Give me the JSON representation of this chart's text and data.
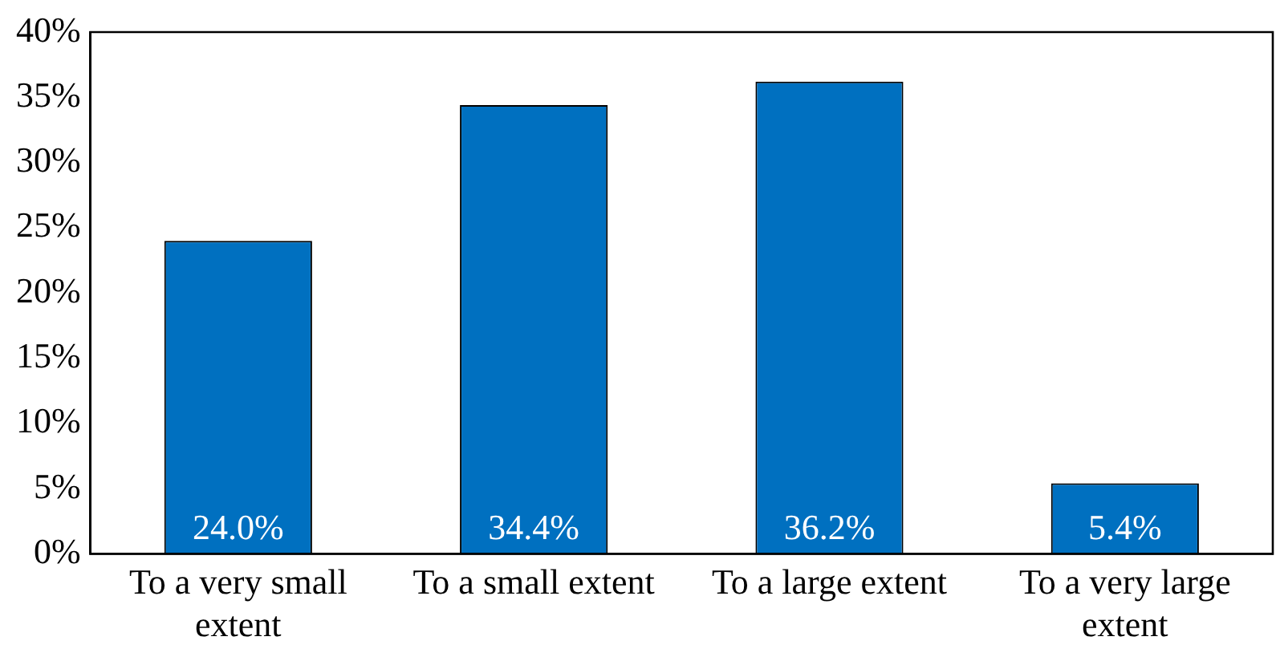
{
  "chart_data": {
    "type": "bar",
    "categories": [
      "To a very small extent",
      "To a small extent",
      "To a large extent",
      "To a very large extent"
    ],
    "values": [
      24.0,
      34.4,
      36.2,
      5.4
    ],
    "value_labels": [
      "24.0%",
      "34.4%",
      "36.2%",
      "5.4%"
    ],
    "color": "#0070c0",
    "ylim": [
      0,
      40
    ],
    "yticks": [
      {
        "value": 0,
        "label": "0%"
      },
      {
        "value": 5,
        "label": "5%"
      },
      {
        "value": 10,
        "label": "10%"
      },
      {
        "value": 15,
        "label": "15%"
      },
      {
        "value": 20,
        "label": "20%"
      },
      {
        "value": 25,
        "label": "25%"
      },
      {
        "value": 30,
        "label": "30%"
      },
      {
        "value": 35,
        "label": "35%"
      },
      {
        "value": 40,
        "label": "40%"
      }
    ],
    "grid": false,
    "legend": false
  }
}
